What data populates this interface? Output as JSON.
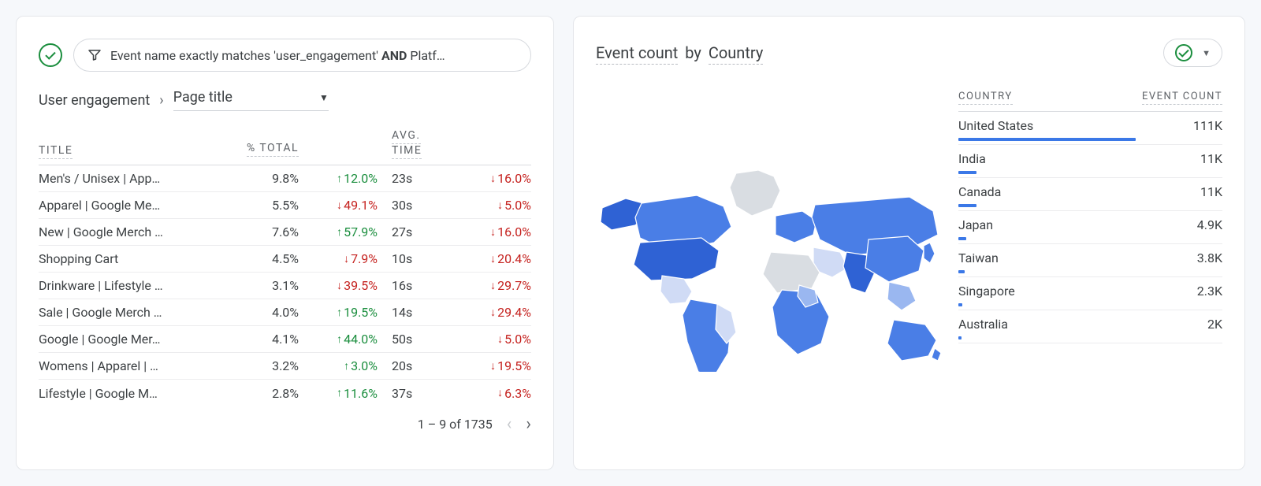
{
  "colors": {
    "page_bg": "#f6f8fb",
    "card_bg": "#ffffff",
    "card_border": "#e4e6ea",
    "text": "#3c4043",
    "muted": "#5f6368",
    "divider": "#dadce0",
    "row_divider": "#ececee",
    "dashed": "#c2c6cc",
    "up": "#1b8e3e",
    "down": "#c5221f",
    "accent": "#3b78e7",
    "map_dark": "#2f62d4",
    "map_mid": "#4a7ee6",
    "map_light": "#9ab7f0",
    "map_pale": "#d0dbf5",
    "map_grey": "#d9dde2"
  },
  "left": {
    "filter": {
      "prefix": "Event name exactly matches 'user_engagement' ",
      "bold": "AND",
      "suffix": " Platf…"
    },
    "breadcrumb": {
      "root": "User engagement",
      "dimension": "Page title"
    },
    "columns": {
      "title": "TITLE",
      "pct_total": "% TOTAL",
      "avg_time": "AVG. TIME"
    },
    "rows": [
      {
        "title": "Men's / Unisex | App…",
        "pct": "9.8%",
        "chg1_dir": "up",
        "chg1": "12.0%",
        "avg": "23s",
        "chg2_dir": "down",
        "chg2": "16.0%"
      },
      {
        "title": "Apparel | Google Me…",
        "pct": "5.5%",
        "chg1_dir": "down",
        "chg1": "49.1%",
        "avg": "30s",
        "chg2_dir": "down",
        "chg2": "5.0%"
      },
      {
        "title": "New | Google Merch …",
        "pct": "7.6%",
        "chg1_dir": "up",
        "chg1": "57.9%",
        "avg": "27s",
        "chg2_dir": "down",
        "chg2": "16.0%"
      },
      {
        "title": "Shopping Cart",
        "pct": "4.5%",
        "chg1_dir": "down",
        "chg1": "7.9%",
        "avg": "10s",
        "chg2_dir": "down",
        "chg2": "20.4%"
      },
      {
        "title": "Drinkware | Lifestyle …",
        "pct": "3.1%",
        "chg1_dir": "down",
        "chg1": "39.5%",
        "avg": "16s",
        "chg2_dir": "down",
        "chg2": "29.7%"
      },
      {
        "title": "Sale | Google Merch …",
        "pct": "4.0%",
        "chg1_dir": "up",
        "chg1": "19.5%",
        "avg": "14s",
        "chg2_dir": "down",
        "chg2": "29.4%"
      },
      {
        "title": "Google | Google Mer…",
        "pct": "4.1%",
        "chg1_dir": "up",
        "chg1": "44.0%",
        "avg": "50s",
        "chg2_dir": "down",
        "chg2": "5.0%"
      },
      {
        "title": "Womens | Apparel | …",
        "pct": "3.2%",
        "chg1_dir": "up",
        "chg1": "3.0%",
        "avg": "20s",
        "chg2_dir": "down",
        "chg2": "19.5%"
      },
      {
        "title": "Lifestyle | Google M…",
        "pct": "2.8%",
        "chg1_dir": "up",
        "chg1": "11.6%",
        "avg": "37s",
        "chg2_dir": "down",
        "chg2": "6.3%"
      }
    ],
    "pager": {
      "label": "1 – 9 of 1735",
      "prev_enabled": false,
      "next_enabled": true
    }
  },
  "right": {
    "title_prefix": "Event count",
    "title_by": "by",
    "title_dim": "Country",
    "columns": {
      "country": "COUNTRY",
      "event_count": "EVENT COUNT"
    },
    "max_value": 111,
    "rows": [
      {
        "country": "United States",
        "value": "111K",
        "bar_ratio": 1.0
      },
      {
        "country": "India",
        "value": "11K",
        "bar_ratio": 0.1
      },
      {
        "country": "Canada",
        "value": "11K",
        "bar_ratio": 0.1
      },
      {
        "country": "Japan",
        "value": "4.9K",
        "bar_ratio": 0.044
      },
      {
        "country": "Taiwan",
        "value": "3.8K",
        "bar_ratio": 0.034
      },
      {
        "country": "Singapore",
        "value": "2.3K",
        "bar_ratio": 0.021
      },
      {
        "country": "Australia",
        "value": "2K",
        "bar_ratio": 0.018
      }
    ],
    "map": {
      "type": "choropleth-world",
      "stroke": "#ffffff",
      "stroke_width": 1.2,
      "shade_legend": {
        "dark": "high",
        "grey": "no-data"
      }
    }
  }
}
